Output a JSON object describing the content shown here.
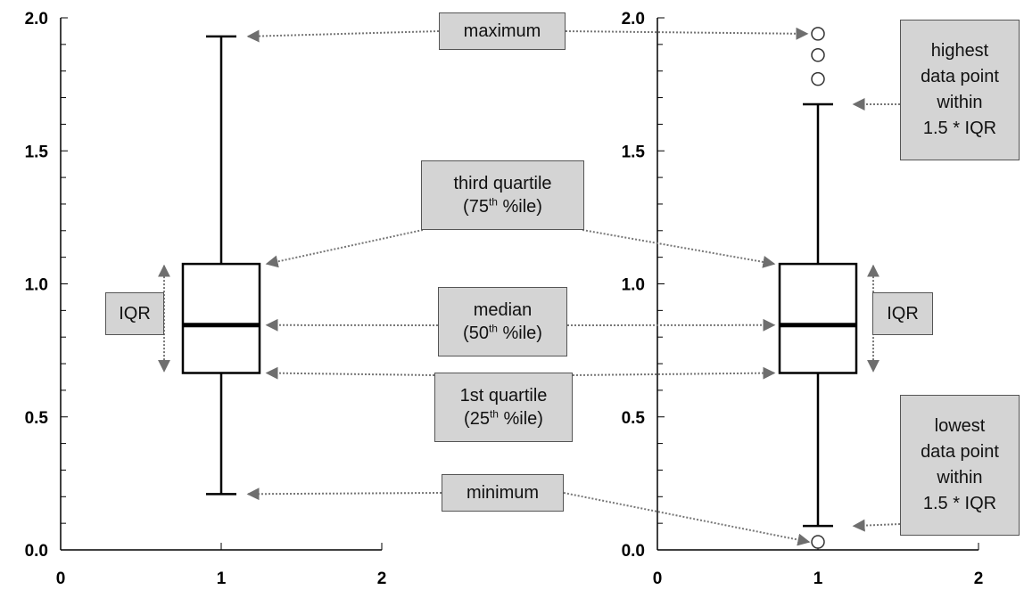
{
  "chart_data": [
    {
      "type": "box",
      "xlim": [
        0,
        2
      ],
      "ylim": [
        0,
        2
      ],
      "x_ticks": [
        "0",
        "1",
        "2"
      ],
      "y_ticks": [
        "0.0",
        "0.5",
        "1.0",
        "1.5",
        "2.0"
      ],
      "box": {
        "x": 1,
        "whisker_low": 0.21,
        "q1": 0.665,
        "median": 0.845,
        "q3": 1.075,
        "whisker_high": 1.93
      },
      "outliers": []
    },
    {
      "type": "box",
      "xlim": [
        0,
        2
      ],
      "ylim": [
        0,
        2
      ],
      "x_ticks": [
        "0",
        "1",
        "2"
      ],
      "y_ticks": [
        "0.0",
        "0.5",
        "1.0",
        "1.5",
        "2.0"
      ],
      "box": {
        "x": 1,
        "whisker_low": 0.09,
        "q1": 0.665,
        "median": 0.845,
        "q3": 1.075,
        "whisker_high": 1.675
      },
      "outliers": [
        1.94,
        1.86,
        1.77,
        0.03
      ]
    }
  ],
  "annotations": {
    "maximum": "maximum",
    "third_quartile": {
      "line1": "third quartile",
      "num": "(75",
      "sup": "th",
      "rest": " %ile)"
    },
    "median": {
      "line1": "median",
      "num": "(50",
      "sup": "th",
      "rest": " %ile)"
    },
    "first_quartile": {
      "line1": "1st quartile",
      "num": "(25",
      "sup": "th",
      "rest": " %ile)"
    },
    "minimum": "minimum",
    "iqr_left": "IQR",
    "iqr_right": "IQR",
    "highest": [
      "highest",
      "data point",
      "within",
      "1.5 * IQR"
    ],
    "lowest": [
      "lowest",
      "data point",
      "within",
      "1.5 * IQR"
    ]
  },
  "colors": {
    "box_fill": "#d4d4d4",
    "arrow": "#777777",
    "axis": "#000000"
  }
}
